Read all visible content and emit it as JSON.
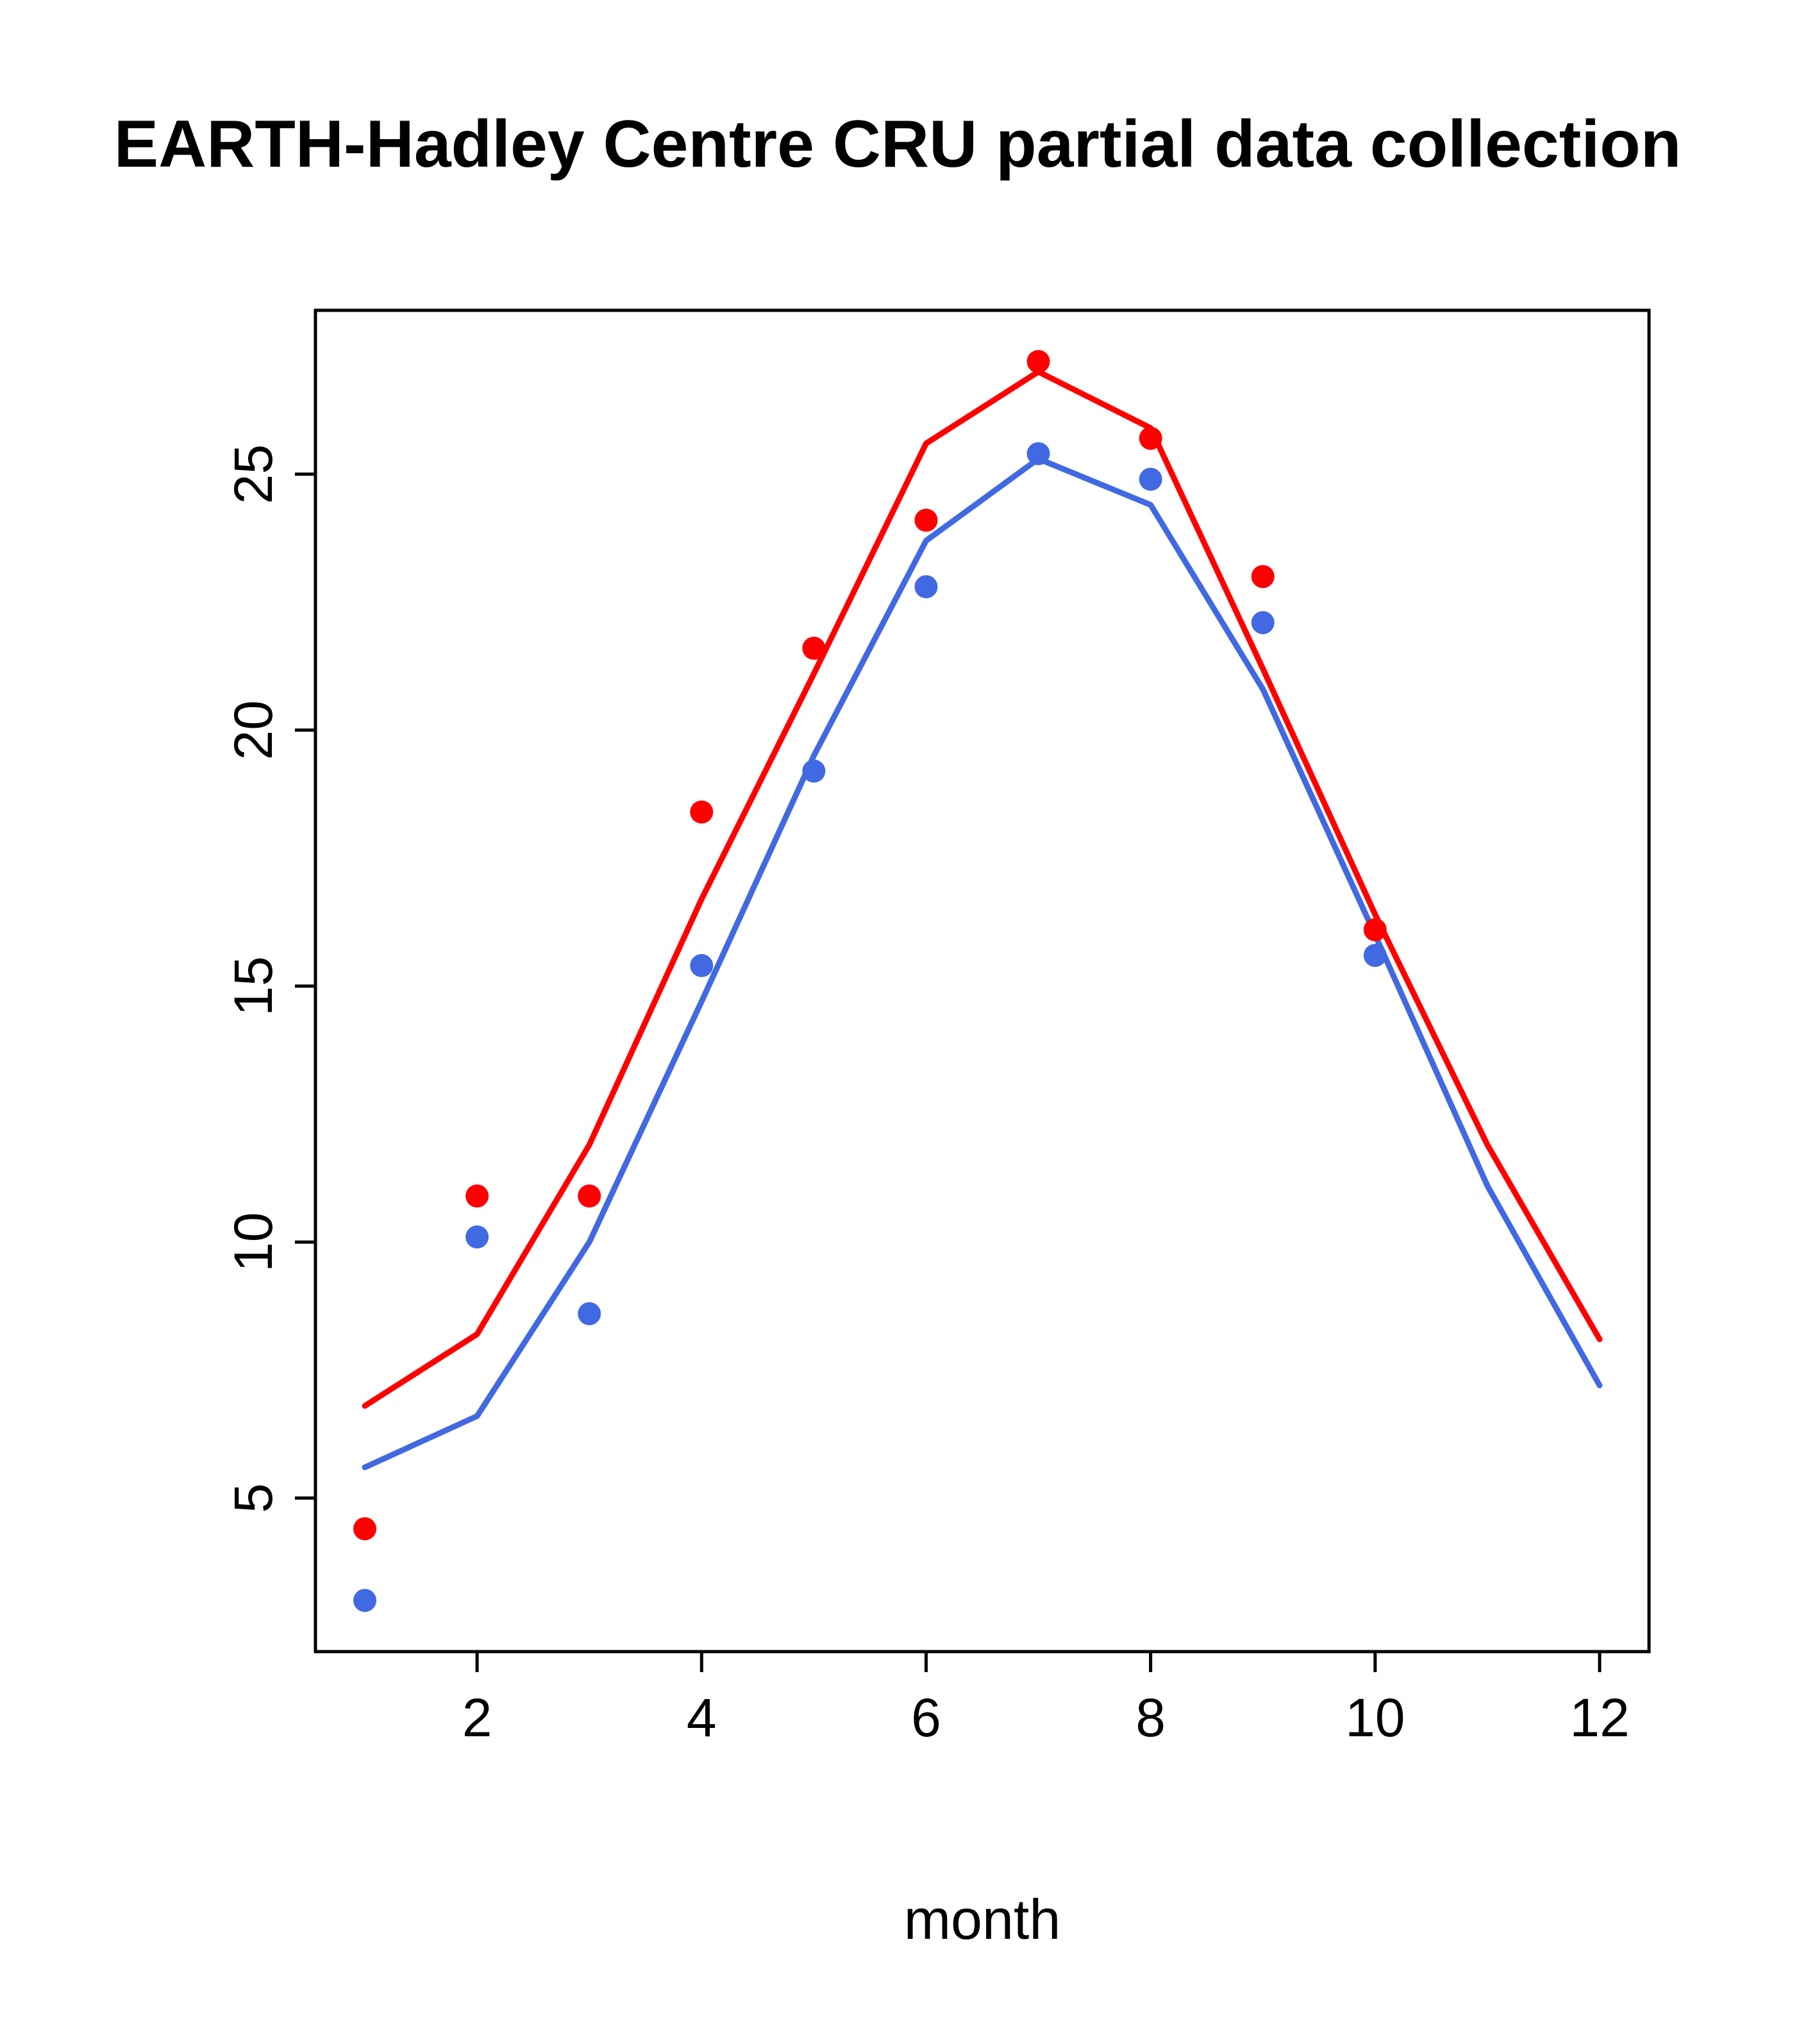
{
  "window": {
    "background": "#ffffff"
  },
  "chart_data": {
    "type": "line",
    "title": "EARTH-Hadley Centre  CRU partial data collection",
    "xlabel": "month",
    "ylabel": "",
    "x": [
      1,
      2,
      3,
      4,
      5,
      6,
      7,
      8,
      9,
      10,
      11,
      12
    ],
    "xticks": [
      2,
      4,
      6,
      8,
      10,
      12
    ],
    "yticks": [
      5,
      10,
      15,
      20,
      25
    ],
    "xlim": [
      0.56,
      12.44
    ],
    "ylim": [
      2.0,
      28.2
    ],
    "grid": false,
    "legend": "none",
    "colors": {
      "red_series": "#ff0000",
      "blue_series": "#4169e1",
      "axis": "#000000"
    },
    "series": [
      {
        "name": "red-model-line",
        "kind": "line",
        "color": "#ff0000",
        "x": [
          1,
          2,
          3,
          4,
          5,
          6,
          7,
          8,
          9,
          10,
          11,
          12
        ],
        "values": [
          6.8,
          8.2,
          11.9,
          16.7,
          21.1,
          25.6,
          27.0,
          25.9,
          21.2,
          16.4,
          11.9,
          8.1
        ]
      },
      {
        "name": "blue-model-line",
        "kind": "line",
        "color": "#4169e1",
        "x": [
          1,
          2,
          3,
          4,
          5,
          6,
          7,
          8,
          9,
          10,
          11,
          12
        ],
        "values": [
          5.6,
          6.6,
          10.0,
          14.7,
          19.5,
          23.7,
          25.3,
          24.4,
          20.8,
          16.0,
          11.1,
          7.2
        ]
      },
      {
        "name": "red-obs-points",
        "kind": "scatter",
        "color": "#ff0000",
        "x": [
          1,
          2,
          3,
          4,
          5,
          6,
          7,
          8,
          9,
          10
        ],
        "values": [
          4.4,
          10.9,
          10.9,
          18.4,
          21.6,
          24.1,
          27.2,
          25.7,
          23.0,
          16.1
        ]
      },
      {
        "name": "blue-obs-points",
        "kind": "scatter",
        "color": "#4169e1",
        "x": [
          1,
          2,
          3,
          4,
          5,
          6,
          7,
          8,
          9,
          10
        ],
        "values": [
          3.0,
          10.1,
          8.6,
          15.4,
          19.2,
          22.8,
          25.4,
          24.9,
          22.1,
          15.6
        ]
      }
    ]
  }
}
